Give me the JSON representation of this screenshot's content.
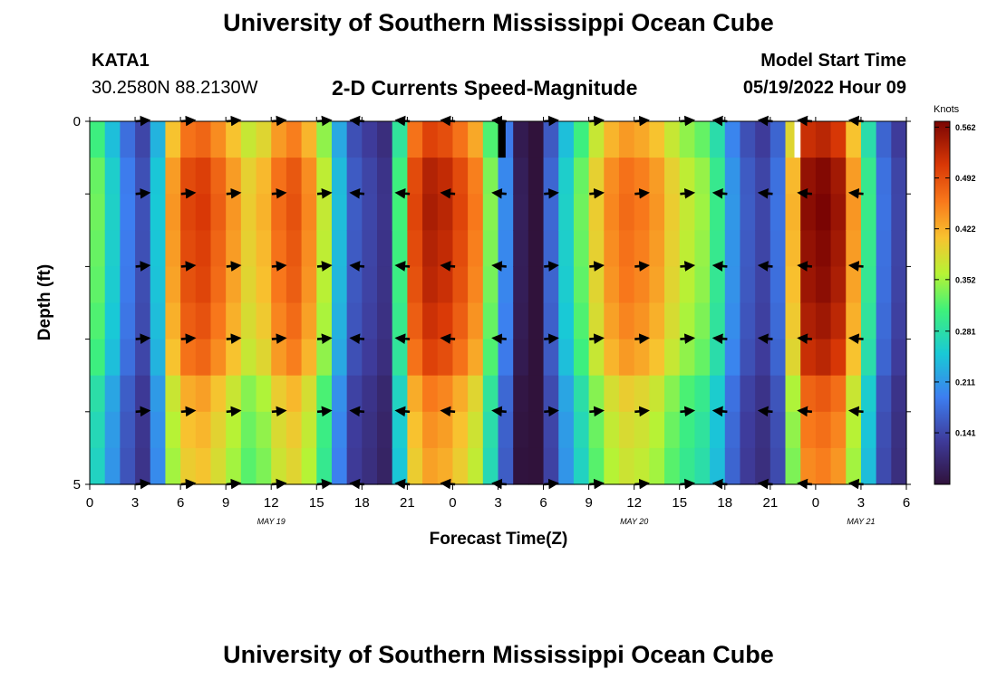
{
  "title": "University of Southern Mississippi Ocean Cube",
  "title_repeat": "University of Southern Mississippi Ocean Cube",
  "station": {
    "name": "KATA1",
    "coordinates": "30.2580N  88.2130W"
  },
  "subtitle": "2-D Currents Speed-Magnitude",
  "model_start": {
    "label": "Model Start Time",
    "value": "05/19/2022 Hour 09"
  },
  "chart_data": {
    "type": "heatmap",
    "title": "2-D Currents Speed-Magnitude",
    "xlabel": "Forecast Time(Z)",
    "ylabel": "Depth (ft)",
    "x_range_hours": [
      0,
      54
    ],
    "ylim": [
      0,
      5
    ],
    "y_ticks": [
      "0",
      "5"
    ],
    "x_tick_labels": [
      "0",
      "3",
      "6",
      "9",
      "12",
      "15",
      "18",
      "21",
      "0",
      "3",
      "6",
      "9",
      "12",
      "15",
      "18",
      "21",
      "0",
      "3",
      "6"
    ],
    "date_labels": [
      {
        "label": "MAY 19",
        "at_hour": 12
      },
      {
        "label": "MAY 20",
        "at_hour": 36
      },
      {
        "label": "MAY 21",
        "at_hour": 51
      }
    ],
    "colorbar": {
      "title": "Knots",
      "ticks": [
        "0.562",
        "0.492",
        "0.422",
        "0.352",
        "0.281",
        "0.211",
        "0.141"
      ],
      "min": 0.07,
      "max": 0.57
    },
    "hourly_speed_knots": [
      0.33,
      0.26,
      0.19,
      0.15,
      0.25,
      0.44,
      0.5,
      0.51,
      0.48,
      0.44,
      0.4,
      0.42,
      0.47,
      0.49,
      0.45,
      0.37,
      0.24,
      0.16,
      0.14,
      0.12,
      0.31,
      0.5,
      0.54,
      0.53,
      0.5,
      0.46,
      0.34,
      0.2,
      0.09,
      0.05,
      0.17,
      0.26,
      0.33,
      0.4,
      0.45,
      0.47,
      0.46,
      0.44,
      0.4,
      0.37,
      0.35,
      0.3,
      0.21,
      0.16,
      0.14,
      0.18,
      0.42,
      0.56,
      0.57,
      0.55,
      0.44,
      0.3,
      0.18,
      0.14,
      0.13
    ],
    "depth_row_factors": [
      0.93,
      0.99,
      1.0,
      0.99,
      0.98,
      0.96,
      0.93,
      0.85,
      0.82,
      0.8
    ],
    "surface_missing_hours": [
      [
        27,
        27.5
      ],
      [
        46.6,
        47.0
      ]
    ],
    "vector_hours": [
      3.4,
      6.4,
      9.4,
      12.4,
      15.4,
      17.8,
      20.8,
      23.8,
      27.2,
      30.4,
      33.4,
      36.4,
      39.4,
      41.8,
      44.8,
      47.4,
      50.8
    ],
    "vector_directions": [
      "E",
      "E",
      "E",
      "E",
      "E",
      "W",
      "W",
      "W",
      "W",
      "E",
      "E",
      "E",
      "E",
      "W",
      "W",
      "W",
      "W"
    ],
    "vector_depths_ft": [
      0,
      1,
      2,
      3,
      4,
      5
    ]
  }
}
